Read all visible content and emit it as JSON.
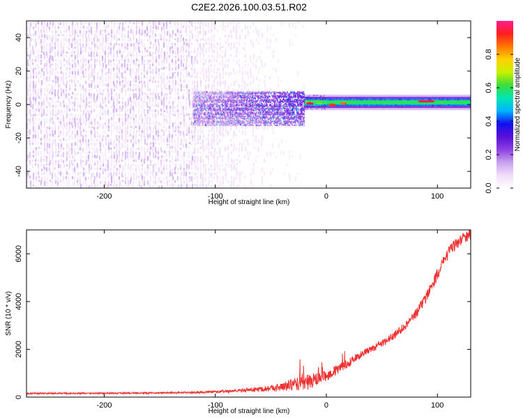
{
  "title": "C2E2.2026.100.03.51.R02",
  "colors": {
    "spectrogram_background": "#ffffff",
    "snr_line": "#ef3030",
    "colormap": [
      "#ffffff",
      "#f0dcfa",
      "#c9a2ee",
      "#8a3fe0",
      "#5a10d8",
      "#1010ee",
      "#00b4ff",
      "#00e6b4",
      "#3cdc3c",
      "#c8f000",
      "#ffd200",
      "#ff7800",
      "#ff1e1e",
      "#ff1e8c"
    ]
  },
  "colorbar": {
    "label": "Normalized spectral amplitude",
    "range": [
      0.0,
      1.0
    ],
    "tick_values": [
      0.0,
      0.2,
      0.4,
      0.6,
      0.8
    ],
    "tick_labels": [
      "0.0",
      "0.2",
      "0.4",
      "0.6",
      "0.8"
    ]
  },
  "chart_data": [
    {
      "type": "heatmap",
      "name": "spectrogram",
      "xlabel": "Height of straight line (km)",
      "ylabel": "Frequency (Hz)",
      "xlim": [
        -270,
        130
      ],
      "ylim": [
        -50,
        50
      ],
      "x_ticks": [
        -200,
        -100,
        0,
        100
      ],
      "x_tick_labels": [
        "-200",
        "-100",
        "0",
        "100"
      ],
      "y_ticks": [
        -40,
        -20,
        0,
        20,
        40
      ],
      "y_tick_labels": [
        "-40",
        "-20",
        "0",
        "20",
        "40"
      ],
      "regions": [
        {
          "desc": "broadband noise",
          "x_range": [
            -270,
            -20
          ],
          "freq_range": [
            -50,
            50
          ],
          "amplitude_range": [
            0.0,
            0.15
          ]
        },
        {
          "desc": "emerging signal band",
          "x_range": [
            -120,
            -20
          ],
          "freq_range": [
            -12,
            8
          ],
          "amplitude_range": [
            0.1,
            0.35
          ]
        },
        {
          "desc": "strong carrier band",
          "x_range": [
            -20,
            130
          ],
          "freq_range": [
            -1,
            4
          ],
          "amplitude_range": [
            0.3,
            0.95
          ]
        }
      ],
      "peaks": [
        {
          "x": -15,
          "freq": 1,
          "amplitude": 1.0
        },
        {
          "x": 5,
          "freq": 0,
          "amplitude": 0.95
        },
        {
          "x": 15,
          "freq": 1,
          "amplitude": 0.9
        },
        {
          "x": 90,
          "freq": 2,
          "amplitude": 1.0
        }
      ]
    },
    {
      "type": "line",
      "name": "snr",
      "xlabel": "Height of straight line (km)",
      "ylabel": "SNR (10 * v/v)",
      "xlim": [
        -270,
        130
      ],
      "ylim": [
        0,
        7000
      ],
      "x_ticks": [
        -200,
        -100,
        0,
        100
      ],
      "x_tick_labels": [
        "-200",
        "-100",
        "0",
        "100"
      ],
      "y_ticks": [
        0,
        2000,
        4000,
        6000
      ],
      "y_tick_labels": [
        "0",
        "2000",
        "4000",
        "6000"
      ],
      "series": [
        {
          "name": "SNR",
          "x": [
            -270,
            -200,
            -150,
            -120,
            -100,
            -80,
            -60,
            -40,
            -30,
            -20,
            -10,
            0,
            10,
            20,
            30,
            40,
            50,
            60,
            70,
            80,
            90,
            100,
            105,
            110,
            115,
            120,
            125,
            130
          ],
          "y": [
            150,
            160,
            175,
            190,
            220,
            270,
            330,
            420,
            520,
            600,
            720,
            880,
            1150,
            1450,
            1750,
            2000,
            2250,
            2550,
            2950,
            3450,
            4200,
            5150,
            5600,
            6050,
            6350,
            6550,
            6700,
            6800
          ],
          "noise_amplitude": [
            30,
            30,
            30,
            35,
            50,
            70,
            100,
            180,
            250,
            350,
            300,
            220,
            220,
            180,
            150,
            140,
            150,
            160,
            180,
            200,
            230,
            250,
            250,
            250,
            250,
            250,
            250,
            250
          ]
        }
      ]
    }
  ]
}
